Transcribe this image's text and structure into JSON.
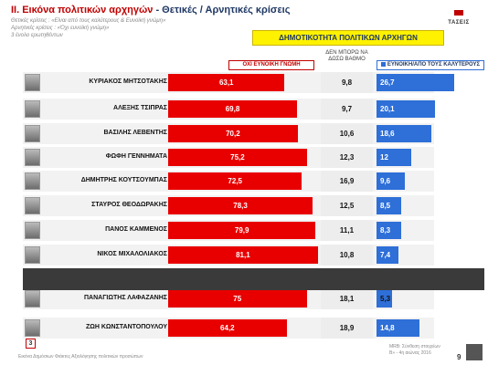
{
  "page": {
    "title_red": "II. Εικόνα πολιτικών αρχηγών",
    "title_rest": " - Θετικές / Αρνητικές κρίσεις",
    "sublines": [
      "Θετικές κρίσεις : «Είναι από τους καλύτερους & Ευνοϊκή γνώμη»",
      "Αρνητικές κρίσεις : «Όχι ευνοϊκή γνώμη»",
      "3 ένολο ερωτηθέντων"
    ],
    "logo_text": "ΤΑΣΕΙΣ",
    "banner": "ΔΗΜΟΤΙΚΟΤΗΤΑ ΠΟΛΙΤΙΚΩΝ ΑΡΧΗΓΩΝ",
    "footer_left": "Εικόνα Δημόσιων Φιάκτες Αξιολόγησης πολιτικών προσώπων",
    "footer_right_1": "MRB: Σύνθεση στοιχείων",
    "footer_right_2": "Β» - 4η αιώνας 2016",
    "page_number": "9",
    "badge": "3"
  },
  "chart_data": {
    "type": "bar",
    "series": [
      {
        "name": "ΟΧΙ ΕΥΝΟΙΚΗ ΓΝΩΜΗ",
        "color": "#e80000",
        "values": [
          63.1,
          69.8,
          70.2,
          75.2,
          72.5,
          78.3,
          79.9,
          81.1,
          75,
          64.2
        ]
      },
      {
        "name": "ΔΕΝ ΜΠΟΡΩ ΝΑ ΔΩΣΩ ΒΑΘΜΟ",
        "color": "#ededed",
        "values": [
          9.8,
          9.7,
          10.6,
          12.3,
          16.9,
          12.5,
          11.1,
          10.8,
          18.1,
          18.9
        ]
      },
      {
        "name": "ΕΥΝΟΙΚΗ/ΑΠΟ ΤΟΥΣ ΚΑΛΥΤΕΡΟΥΣ",
        "color": "#2e6fd8",
        "values": [
          26.7,
          20.1,
          18.6,
          12,
          9.6,
          8.5,
          8.3,
          7.4,
          5.3,
          14.8
        ]
      }
    ],
    "labels_red": [
      "63,1",
      "69,8",
      "70,2",
      "75,2",
      "72,5",
      "78,3",
      "79,9",
      "81,1",
      "75",
      "64,2"
    ],
    "labels_grey": [
      "9,8",
      "9,7",
      "10,6",
      "12,3",
      "16,9",
      "12,5",
      "11,1",
      "10,8",
      "18,1",
      "18,9"
    ],
    "labels_blue": [
      "26,7",
      "20,1",
      "18,6",
      "12",
      "9,6",
      "8,5",
      "8,3",
      "7,4",
      "5,3",
      "14,8"
    ],
    "categories": [
      "ΚΥΡΙΑΚΟΣ ΜΗΤΣΟΤΑΚΗΣ",
      "ΑΛΕΞΗΣ ΤΣΙΠΡΑΣ",
      "ΒΑΣΙΛΗΣ ΛΕΒΕΝΤΗΣ",
      "ΦΩΦΗ ΓΕΝΝΗΜΑΤΑ",
      "ΔΗΜΗΤΡΗΣ ΚΟΥΤΣΟΥΜΠΑΣ",
      "ΣΤΑΥΡΟΣ ΘΕΟΔΩΡΑΚΗΣ",
      "ΠΑΝΟΣ ΚΑΜΜΕΝΟΣ",
      "ΝΙΚΟΣ ΜΙΧΑΛΟΛΙΑΚΟΣ",
      "ΠΑΝΑΓΙΩΤΗΣ ΛΑΦΑΖΑΝΗΣ",
      "ΖΩΗ ΚΩΝΣΤΑΝΤΟΠΟΥΛΟΥ"
    ]
  }
}
